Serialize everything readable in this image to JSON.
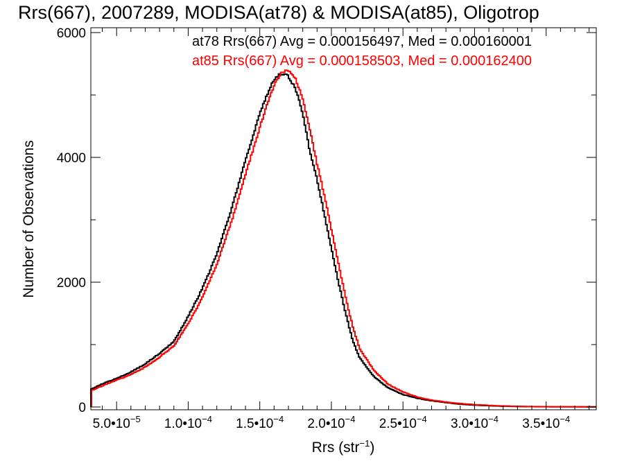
{
  "chart_data": {
    "type": "histogram",
    "title": "Rrs(667), 2007289, MODISA(at78) & MODISA(at85), Oligotrop",
    "xlabel": "Rrs (str",
    "xlabel_sup": "−1",
    "xlabel_tail": ")",
    "ylabel": "Number of Observations",
    "xlim": [
      3.2e-05,
      0.000385
    ],
    "ylim": [
      0,
      6000
    ],
    "x_ticks": [
      {
        "value": 5e-05,
        "mantissa": "5.0",
        "exp": "−5"
      },
      {
        "value": 0.0001,
        "mantissa": "1.0",
        "exp": "−4"
      },
      {
        "value": 0.00015,
        "mantissa": "1.5",
        "exp": "−4"
      },
      {
        "value": 0.0002,
        "mantissa": "2.0",
        "exp": "−4"
      },
      {
        "value": 0.00025,
        "mantissa": "2.5",
        "exp": "−4"
      },
      {
        "value": 0.0003,
        "mantissa": "3.0",
        "exp": "−4"
      },
      {
        "value": 0.00035,
        "mantissa": "3.5",
        "exp": "−4"
      }
    ],
    "y_ticks": [
      {
        "value": 0,
        "label": "0"
      },
      {
        "value": 2000,
        "label": "2000"
      },
      {
        "value": 4000,
        "label": "4000"
      },
      {
        "value": 6000,
        "label": "6000"
      }
    ],
    "annotations": [
      {
        "text": "at78 Rrs(667) Avg = 0.000156497, Med = 0.000160001",
        "color": "#000000"
      },
      {
        "text": "at85 Rrs(667) Avg = 0.000158503, Med = 0.000162400",
        "color": "#ff0000"
      }
    ],
    "series": [
      {
        "name": "at78",
        "color": "#000000",
        "x": [
          3.2e-05,
          4e-05,
          5e-05,
          6e-05,
          7e-05,
          8e-05,
          9e-05,
          0.0001,
          0.00011,
          0.00012,
          0.00013,
          0.00014,
          0.00015,
          0.000155,
          0.00016,
          0.000165,
          0.00017,
          0.000175,
          0.00018,
          0.000185,
          0.00019,
          0.000195,
          0.0002,
          0.000205,
          0.00021,
          0.000215,
          0.00022,
          0.00023,
          0.00024,
          0.00025,
          0.00026,
          0.00027,
          0.00028,
          0.00029,
          0.0003,
          0.00031,
          0.00032,
          0.00033,
          0.00034,
          0.00036,
          0.000385
        ],
        "y": [
          280,
          370,
          460,
          560,
          690,
          860,
          1050,
          1450,
          1900,
          2450,
          3150,
          3950,
          4700,
          5000,
          5250,
          5350,
          5300,
          5100,
          4700,
          4100,
          3650,
          3100,
          2550,
          2000,
          1500,
          1050,
          780,
          480,
          300,
          200,
          140,
          100,
          70,
          45,
          30,
          20,
          12,
          8,
          5,
          3,
          2
        ]
      },
      {
        "name": "at85",
        "color": "#ff0000",
        "x": [
          3.2e-05,
          4e-05,
          5e-05,
          6e-05,
          7e-05,
          8e-05,
          9e-05,
          0.0001,
          0.00011,
          0.00012,
          0.00013,
          0.00014,
          0.00015,
          0.000155,
          0.00016,
          0.000165,
          0.00017,
          0.000175,
          0.00018,
          0.000185,
          0.00019,
          0.000195,
          0.0002,
          0.000205,
          0.00021,
          0.000215,
          0.00022,
          0.00023,
          0.00024,
          0.00025,
          0.00026,
          0.00027,
          0.00028,
          0.00029,
          0.0003,
          0.00031,
          0.00032,
          0.00033,
          0.00034,
          0.00036,
          0.000385
        ],
        "y": [
          260,
          340,
          430,
          520,
          640,
          800,
          980,
          1330,
          1760,
          2290,
          2950,
          3720,
          4480,
          4850,
          5150,
          5350,
          5400,
          5250,
          4950,
          4450,
          3900,
          3400,
          2850,
          2300,
          1750,
          1280,
          920,
          580,
          360,
          240,
          160,
          110,
          80,
          55,
          38,
          26,
          16,
          11,
          7,
          4,
          2
        ]
      }
    ]
  }
}
